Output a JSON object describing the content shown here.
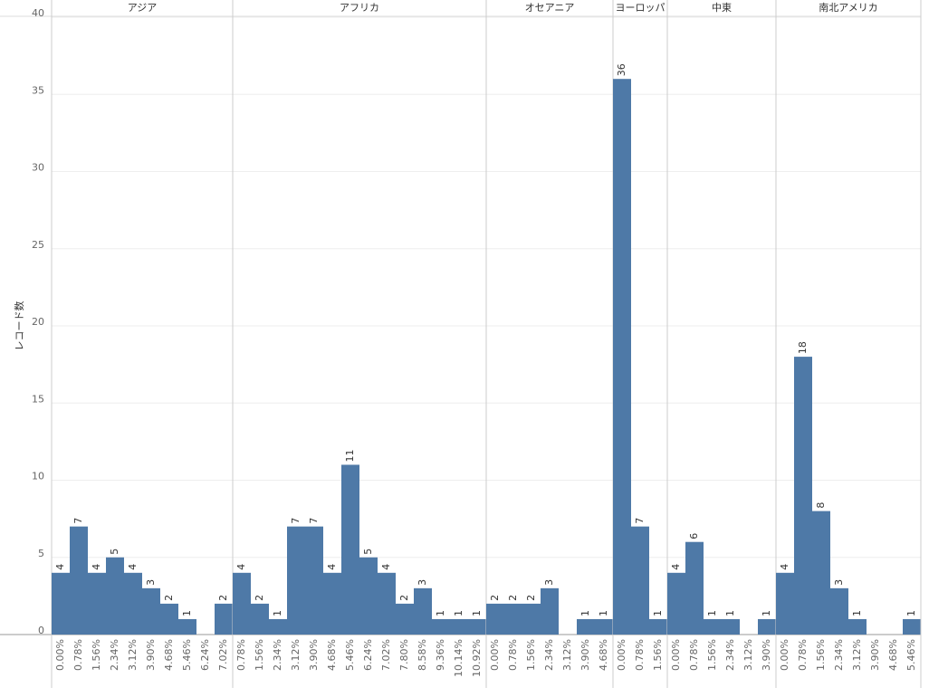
{
  "chart_data": {
    "type": "bar",
    "y_label": "レコード数",
    "color": "#4e79a7",
    "ylim": [
      0,
      40
    ],
    "yticks": [
      0,
      5,
      10,
      15,
      20,
      25,
      30,
      35,
      40
    ],
    "grid": true,
    "panels": [
      {
        "name": "アジア",
        "categories": [
          "0.00%",
          "0.78%",
          "1.56%",
          "2.34%",
          "3.12%",
          "3.90%",
          "4.68%",
          "5.46%",
          "6.24%",
          "7.02%"
        ],
        "values": [
          4,
          7,
          4,
          5,
          4,
          3,
          2,
          1,
          null,
          2
        ]
      },
      {
        "name": "アフリカ",
        "categories": [
          "0.78%",
          "1.56%",
          "2.34%",
          "3.12%",
          "3.90%",
          "4.68%",
          "5.46%",
          "6.24%",
          "7.02%",
          "7.80%",
          "8.58%",
          "9.36%",
          "10.14%",
          "10.92%"
        ],
        "values": [
          4,
          2,
          1,
          7,
          7,
          4,
          11,
          5,
          4,
          2,
          3,
          1,
          1,
          1
        ]
      },
      {
        "name": "オセアニア",
        "categories": [
          "0.00%",
          "0.78%",
          "1.56%",
          "2.34%",
          "3.12%",
          "3.90%",
          "4.68%"
        ],
        "values": [
          2,
          2,
          2,
          3,
          null,
          1,
          1
        ]
      },
      {
        "name": "ヨーロッパ",
        "categories": [
          "0.00%",
          "0.78%",
          "1.56%"
        ],
        "values": [
          36,
          7,
          1
        ]
      },
      {
        "name": "中東",
        "categories": [
          "0.00%",
          "0.78%",
          "1.56%",
          "2.34%",
          "3.12%",
          "3.90%"
        ],
        "values": [
          4,
          6,
          1,
          1,
          null,
          1
        ]
      },
      {
        "name": "南北アメリカ",
        "categories": [
          "0.00%",
          "0.78%",
          "1.56%",
          "2.34%",
          "3.12%",
          "3.90%",
          "4.68%",
          "5.46%"
        ],
        "values": [
          4,
          18,
          8,
          3,
          1,
          null,
          null,
          1
        ]
      }
    ]
  }
}
